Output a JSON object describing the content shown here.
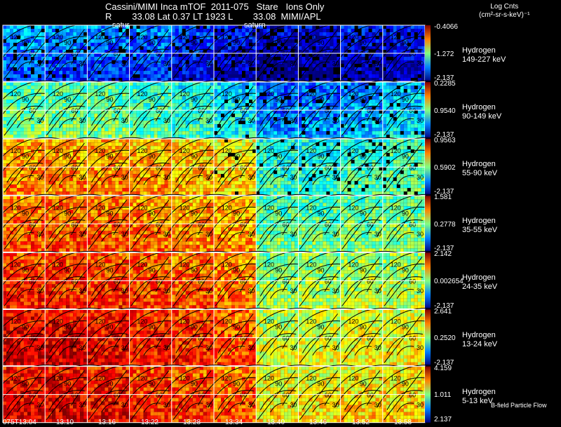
{
  "header": {
    "line1": "Cassini/MIMI Inca mTOF  2011-075   Stare   Ions Only",
    "line2": "R        33.08 Lat 0.37 LT 1923 L        33.08  MIMI/APL"
  },
  "colorbar_title": {
    "line1": "Log Cnts",
    "line2": "(cm²-sr-s-keV)⁻¹"
  },
  "overlay_labels": [
    "satur",
    "saturn"
  ],
  "footnote": "B-field Particle Flow",
  "chart_data": {
    "type": "heatmap",
    "x_tick_labels": [
      "075T13:04",
      "13:10",
      "13:16",
      "13:22",
      "13:28",
      "13:34",
      "13:40",
      "13:46",
      "13:52",
      "13:58"
    ],
    "contour_labels": [
      "150",
      "120",
      "90",
      "60",
      "30"
    ],
    "rows": [
      {
        "species": "Hydrogen",
        "energy": "149-227 keV",
        "cmax": "-0.4066",
        "cmid": "-1.272",
        "cmin": "-2.137",
        "levels": [
          0.3,
          0.28,
          0.27,
          0.26,
          0.2,
          0.15,
          0.1,
          0.1,
          0.15,
          0.15
        ]
      },
      {
        "species": "Hydrogen",
        "energy": "90-149 keV",
        "cmax": "0.2285",
        "cmid": "0.9540",
        "cmin": "-2.137",
        "levels": [
          0.45,
          0.45,
          0.45,
          0.42,
          0.38,
          0.34,
          0.22,
          0.22,
          0.26,
          0.3
        ]
      },
      {
        "species": "Hydrogen",
        "energy": "55-90 keV",
        "cmax": "0.9563",
        "cmid": "0.5902",
        "cmin": "-2.137",
        "levels": [
          0.7,
          0.7,
          0.7,
          0.68,
          0.65,
          0.62,
          0.38,
          0.38,
          0.4,
          0.42
        ]
      },
      {
        "species": "Hydrogen",
        "energy": "35-55 keV",
        "cmax": "1.581",
        "cmid": "0.2778",
        "cmin": "-2.137",
        "levels": [
          0.75,
          0.75,
          0.74,
          0.72,
          0.7,
          0.68,
          0.44,
          0.44,
          0.45,
          0.46
        ]
      },
      {
        "species": "Hydrogen",
        "energy": "24-35 keV",
        "cmax": "2.142",
        "cmid": "0.002654",
        "cmin": "-2.137",
        "levels": [
          0.8,
          0.8,
          0.79,
          0.77,
          0.75,
          0.72,
          0.48,
          0.5,
          0.52,
          0.52
        ]
      },
      {
        "species": "Hydrogen",
        "energy": "13-24 keV",
        "cmax": "2.641",
        "cmid": "0.2520",
        "cmin": "-2.137",
        "levels": [
          0.88,
          0.87,
          0.85,
          0.82,
          0.8,
          0.76,
          0.55,
          0.56,
          0.58,
          0.58
        ]
      },
      {
        "species": "Hydrogen",
        "energy": "5-13 keV",
        "cmax": "4.159",
        "cmid": "1.011",
        "cmin": "2.137",
        "levels": [
          0.86,
          0.86,
          0.84,
          0.8,
          0.78,
          0.75,
          0.6,
          0.6,
          0.62,
          0.62
        ]
      }
    ]
  }
}
